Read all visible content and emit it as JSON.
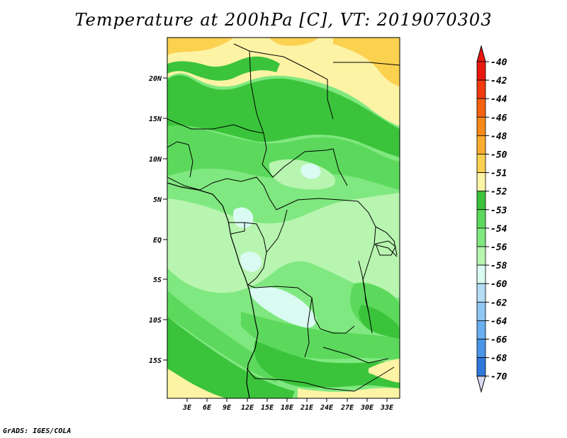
{
  "title": "Temperature at 200hPa [C], VT: 2019070303",
  "credit": "GrADS: IGES/COLA",
  "map": {
    "lat_ticks": [
      "20N",
      "15N",
      "10N",
      "5N",
      "EQ",
      "5S",
      "10S",
      "15S"
    ],
    "lon_ticks": [
      "3E",
      "6E",
      "9E",
      "12E",
      "15E",
      "18E",
      "21E",
      "24E",
      "27E",
      "30E",
      "33E"
    ]
  },
  "colorbar": {
    "labels": [
      "-40",
      "-42",
      "-44",
      "-46",
      "-48",
      "-50",
      "-51",
      "-52",
      "-53",
      "-54",
      "-56",
      "-58",
      "-60",
      "-62",
      "-64",
      "-66",
      "-68",
      "-70"
    ],
    "colors": [
      "#e8180f",
      "#f23a0f",
      "#f5620f",
      "#f7891b",
      "#f9ac2e",
      "#fbd150",
      "#fdf3a4",
      "#3bc43b",
      "#5cd95c",
      "#80e880",
      "#b8f5b0",
      "#d9fbf2",
      "#b4ddf6",
      "#8fc6f2",
      "#69aef0",
      "#4a95e8",
      "#2e78dc",
      "#185fcc",
      "#0c43b0",
      "#052a93",
      "#0a1070"
    ],
    "arrow_top_color": "#e8180f",
    "arrow_bottom_color": "#d8d8f0"
  },
  "legend_colors": {
    "level_m50": "#fdf3a4",
    "level_m48": "#fbd150",
    "level_m51": "#3bc43b",
    "level_m52": "#5cd95c",
    "level_m53": "#80e880",
    "level_m54": "#b8f5b0",
    "level_m56": "#d9fbf2"
  }
}
